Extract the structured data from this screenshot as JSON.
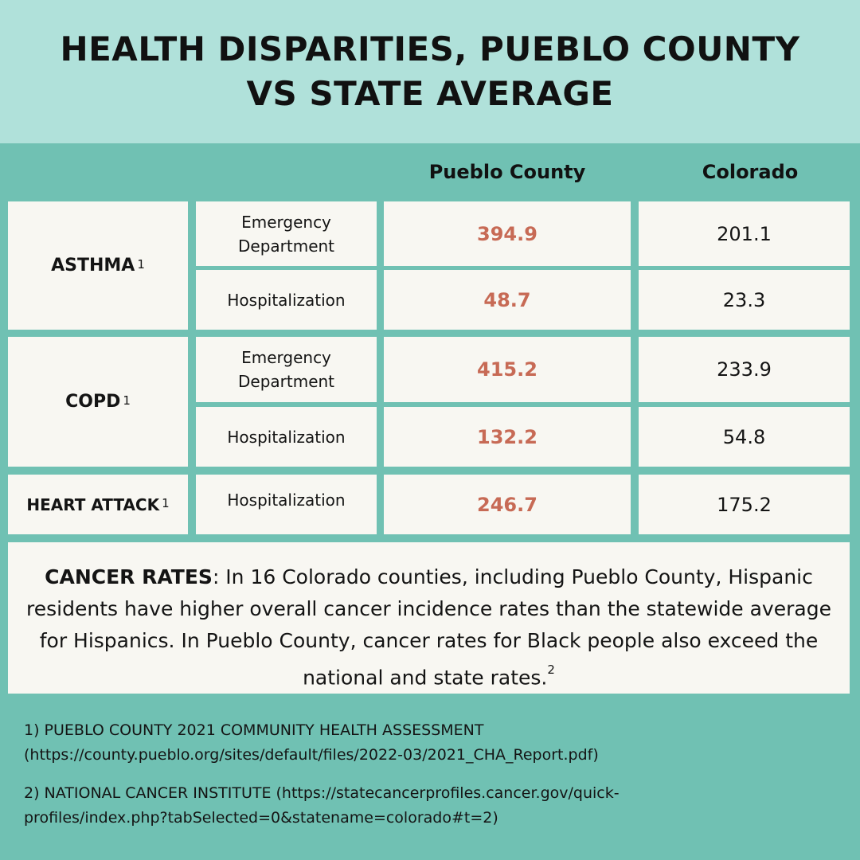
{
  "title": "HEALTH DISPARITIES, PUEBLO COUNTY VS STATE AVERAGE",
  "columns": {
    "county": "Pueblo County",
    "state": "Colorado"
  },
  "conditions": [
    {
      "name": "ASTHMA",
      "footnote": "1",
      "rows": [
        {
          "measure": "Emergency Department",
          "county": "394.9",
          "state": "201.1"
        },
        {
          "measure": "Hospitalization",
          "county": "48.7",
          "state": "23.3"
        }
      ]
    },
    {
      "name": "COPD",
      "footnote": "1",
      "rows": [
        {
          "measure": "Emergency Department",
          "county": "415.2",
          "state": "233.9"
        },
        {
          "measure": "Hospitalization",
          "county": "132.2",
          "state": "54.8"
        }
      ]
    },
    {
      "name": "HEART ATTACK",
      "footnote": "1",
      "rows": [
        {
          "measure": "Hospitalization",
          "county": "246.7",
          "state": "175.2"
        }
      ]
    }
  ],
  "cancer": {
    "label": "CANCER RATES",
    "text": ": In 16 Colorado counties, including Pueblo County, Hispanic residents have higher overall cancer incidence rates than the statewide average for Hispanics. In Pueblo County, cancer rates for Black people also exceed the national and state rates.",
    "footnote": "2"
  },
  "references": [
    {
      "line1": "1) PUEBLO COUNTY 2021 COMMUNITY HEALTH ASSESSMENT",
      "line2": "(https://county.pueblo.org/sites/default/files/2022-03/2021_CHA_Report.pdf)"
    },
    {
      "line1": "2) NATIONAL CANCER INSTITUTE (https://statecancerprofiles.cancer.gov/quick-",
      "line2": "profiles/index.php?tabSelected=0&statename=colorado#t=2)"
    }
  ],
  "colors": {
    "header_bg": "#b0e1da",
    "band_bg": "#70c1b3",
    "cell_bg": "#f8f7f2",
    "highlight": "#c76a55"
  }
}
